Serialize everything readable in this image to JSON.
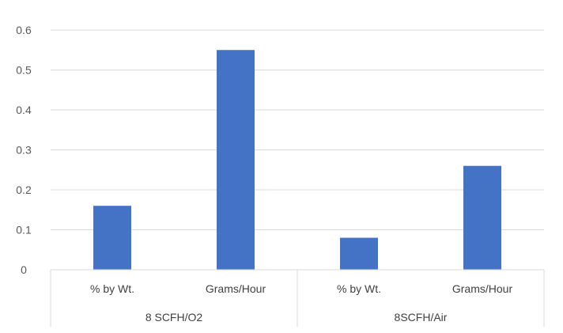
{
  "chart_data": {
    "type": "bar",
    "categories": [
      "% by Wt.",
      "Grams/Hour",
      "% by Wt.",
      "Grams/Hour"
    ],
    "groups": [
      {
        "label": "8 SCFH/O2",
        "categories": [
          "% by Wt.",
          "Grams/Hour"
        ]
      },
      {
        "label": "8SCFH/Air",
        "categories": [
          "% by Wt.",
          "Grams/Hour"
        ]
      }
    ],
    "values": [
      0.16,
      0.55,
      0.08,
      0.26
    ],
    "yticks": [
      "0",
      "0.1",
      "0.2",
      "0.3",
      "0.4",
      "0.5",
      "0.6"
    ],
    "ylim": [
      0,
      0.6
    ],
    "grid": true,
    "legend": "none",
    "title": "",
    "xlabel": "",
    "ylabel": ""
  },
  "colors": {
    "bar": "#4472C4",
    "grid": "#D9D9D9",
    "axis": "#D9D9D9"
  }
}
